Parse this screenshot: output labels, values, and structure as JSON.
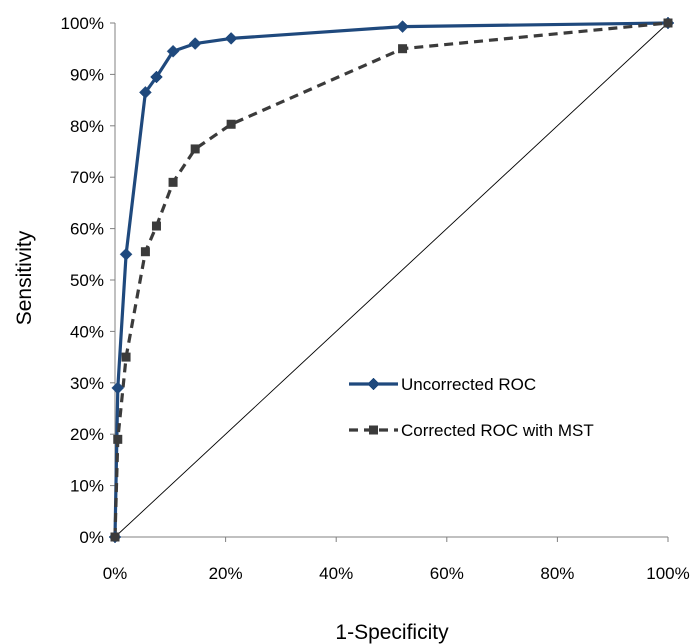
{
  "chart_data": {
    "type": "line",
    "title": "",
    "xlabel": "1-Specificity",
    "ylabel": "Sensitivity",
    "xlim": [
      0,
      100
    ],
    "ylim": [
      0,
      100
    ],
    "x_ticks": [
      "0%",
      "20%",
      "40%",
      "60%",
      "80%",
      "100%"
    ],
    "y_ticks": [
      "0%",
      "10%",
      "20%",
      "30%",
      "40%",
      "50%",
      "60%",
      "70%",
      "80%",
      "90%",
      "100%"
    ],
    "grid": false,
    "legend_position": "right",
    "series": [
      {
        "name": "Uncorrected ROC",
        "color": "#1f497d",
        "marker": "diamond",
        "line_style": "solid",
        "points": [
          {
            "x": 0,
            "y": 0
          },
          {
            "x": 0.5,
            "y": 29
          },
          {
            "x": 2,
            "y": 55
          },
          {
            "x": 5.5,
            "y": 86.5
          },
          {
            "x": 7.5,
            "y": 89.5
          },
          {
            "x": 10.5,
            "y": 94.5
          },
          {
            "x": 14.5,
            "y": 96
          },
          {
            "x": 21,
            "y": 97
          },
          {
            "x": 52,
            "y": 99.3
          },
          {
            "x": 100,
            "y": 100
          }
        ]
      },
      {
        "name": "Corrected ROC with MST",
        "color": "#3b3b3b",
        "marker": "square",
        "line_style": "dashed",
        "points": [
          {
            "x": 0,
            "y": 0
          },
          {
            "x": 0.5,
            "y": 19
          },
          {
            "x": 2,
            "y": 35
          },
          {
            "x": 5.5,
            "y": 55.5
          },
          {
            "x": 7.5,
            "y": 60.5
          },
          {
            "x": 10.5,
            "y": 69
          },
          {
            "x": 14.5,
            "y": 75.5
          },
          {
            "x": 21,
            "y": 80.3
          },
          {
            "x": 52,
            "y": 95
          },
          {
            "x": 100,
            "y": 100
          }
        ]
      },
      {
        "name": "",
        "color": "#000000",
        "marker": "none",
        "line_style": "thin",
        "points": [
          {
            "x": 0,
            "y": 0
          },
          {
            "x": 100,
            "y": 100
          }
        ]
      }
    ]
  }
}
